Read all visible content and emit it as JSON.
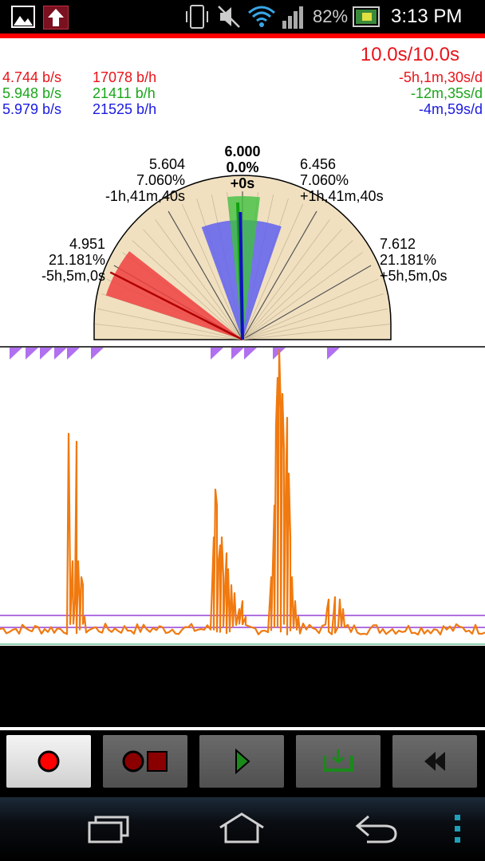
{
  "status_bar": {
    "battery": "82%",
    "time": "3:13 PM",
    "icons": [
      "gallery-icon",
      "upload-icon",
      "phone-vibrate-icon",
      "mute-icon",
      "wifi-icon",
      "signal-icon",
      "battery-icon"
    ]
  },
  "header": {
    "timer": "10.0s/10.0s"
  },
  "readouts": {
    "red": {
      "rate_s": "4.744 b/s",
      "rate_h": "17078 b/h",
      "offset": "-5h,1m,30s/d",
      "color": "#e8141a"
    },
    "green": {
      "rate_s": "5.948 b/s",
      "rate_h": "21411 b/h",
      "offset": "-12m,35s/d",
      "color": "#1aa61a"
    },
    "blue": {
      "rate_s": "5.979 b/s",
      "rate_h": "21525 b/h",
      "offset": "-4m,59s/d",
      "color": "#1a1ae0"
    }
  },
  "gauge": {
    "center": {
      "value": "6.000",
      "percent": "0.0%",
      "offset": "+0s"
    },
    "left_inner": {
      "value": "5.604",
      "percent": "7.060%",
      "offset": "-1h,41m,40s"
    },
    "right_inner": {
      "value": "6.456",
      "percent": "7.060%",
      "offset": "+1h,41m,40s"
    },
    "left_outer": {
      "value": "4.951",
      "percent": "21.181%",
      "offset": "-5h,5m,0s"
    },
    "right_outer": {
      "value": "7.612",
      "percent": "21.181%",
      "offset": "+5h,5m,0s"
    },
    "colors": {
      "face": "#f0e0c0",
      "red": "#f04040",
      "blue": "#6060f0",
      "green": "#40c040"
    }
  },
  "toolbar": {
    "buttons": [
      {
        "name": "record-button",
        "icon": "record-icon",
        "active": true
      },
      {
        "name": "record-stop-button",
        "icon": "record-stop-icon",
        "active": false
      },
      {
        "name": "play-button",
        "icon": "play-icon",
        "active": false
      },
      {
        "name": "export-button",
        "icon": "export-icon",
        "active": false
      },
      {
        "name": "rewind-button",
        "icon": "rewind-icon",
        "active": false
      }
    ]
  },
  "navbar": {
    "icons": [
      "recent-apps-icon",
      "home-icon",
      "back-icon",
      "overflow-menu-icon"
    ]
  }
}
